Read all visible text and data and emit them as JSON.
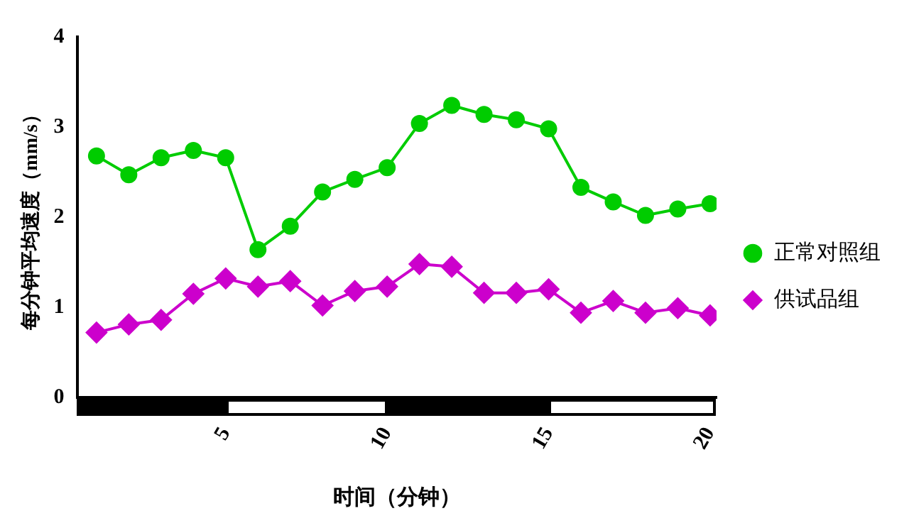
{
  "chart_data": {
    "type": "line",
    "xlabel": "时间（分钟）",
    "ylabel": "每分钟平均速度（mm/s）",
    "x": [
      1,
      2,
      3,
      4,
      5,
      6,
      7,
      8,
      9,
      10,
      11,
      12,
      13,
      14,
      15,
      16,
      17,
      18,
      19,
      20
    ],
    "xlim": [
      0.4,
      20.2
    ],
    "xticks": [
      5,
      10,
      15,
      20
    ],
    "ylim": [
      0,
      4
    ],
    "yticks": [
      0,
      1,
      2,
      3,
      4
    ],
    "grid": false,
    "legend": "right",
    "series": [
      {
        "name": "正常对照组",
        "color": "#00cc00",
        "marker": "circle",
        "values": [
          2.68,
          2.47,
          2.66,
          2.74,
          2.66,
          1.64,
          1.9,
          2.28,
          2.42,
          2.55,
          3.04,
          3.24,
          3.14,
          3.08,
          2.98,
          2.33,
          2.17,
          2.02,
          2.09,
          2.15
        ]
      },
      {
        "name": "供试品组",
        "color": "#cc00cc",
        "marker": "diamond",
        "values": [
          0.72,
          0.81,
          0.86,
          1.15,
          1.32,
          1.23,
          1.29,
          1.02,
          1.18,
          1.23,
          1.48,
          1.45,
          1.16,
          1.16,
          1.2,
          0.94,
          1.07,
          0.94,
          0.99,
          0.91
        ]
      }
    ]
  }
}
